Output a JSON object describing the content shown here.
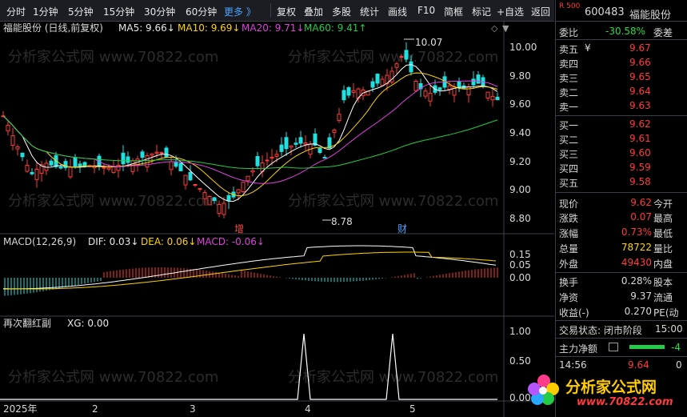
{
  "toolbar": {
    "periods": [
      "分时",
      "1分钟",
      "5分钟",
      "15分钟",
      "30分钟",
      "60分钟"
    ],
    "more": "更多 》",
    "tools": [
      "复权",
      "叠加",
      "多股",
      "统计",
      "画线",
      "F10",
      "简框",
      "标记",
      "+自选",
      "返回"
    ]
  },
  "main_chart": {
    "title": "福能股份 (日线,前复权)",
    "ma5": "MA5: 9.66↓",
    "ma10": "MA10: 9.69↓",
    "ma20": "MA20: 9.71↓",
    "ma60": "MA60: 9.41↑",
    "high_label": "10.07",
    "low_label": "8.78",
    "marker_zeng": "增",
    "marker_cai": "财",
    "watermark": "分析家公式网 www.70822.com",
    "price_ticks": [
      "10.00",
      "9.80",
      "9.60",
      "9.40",
      "9.20",
      "9.00",
      "8.80"
    ]
  },
  "macd_panel": {
    "title": "MACD(12,26,9)",
    "dif": "DIF: 0.03↓",
    "dea": "DEA: 0.06↓",
    "macd": "MACD: -0.06↓",
    "ticks": [
      "0.15",
      "0.05",
      "0.00"
    ]
  },
  "signal_panel": {
    "title": "再次翻红副",
    "xg": "XG: 0.00",
    "ticks": [
      "1.00",
      "0.50",
      "0.00"
    ]
  },
  "date_axis": [
    "2025年",
    "2",
    "3",
    "4",
    "5"
  ],
  "quote": {
    "code_badge": "R 500",
    "code": "600483",
    "name": "福能股份",
    "weibi_label": "委比",
    "weibi_value": "-30.58%",
    "weicha_label": "委差",
    "asks": [
      {
        "label": "卖五",
        "price": "9.67",
        "mark": "¥"
      },
      {
        "label": "卖四",
        "price": "9.66",
        "mark": ""
      },
      {
        "label": "卖三",
        "price": "9.65",
        "mark": ""
      },
      {
        "label": "卖二",
        "price": "9.64",
        "mark": ""
      },
      {
        "label": "卖一",
        "price": "9.63",
        "mark": ""
      }
    ],
    "bids": [
      {
        "label": "买一",
        "price": "9.62"
      },
      {
        "label": "买二",
        "price": "9.61"
      },
      {
        "label": "买三",
        "price": "9.60"
      },
      {
        "label": "买四",
        "price": "9.59"
      },
      {
        "label": "买五",
        "price": "9.58"
      }
    ],
    "stats": [
      {
        "l": "现价",
        "v": "9.62",
        "r": "今开",
        "c": "red"
      },
      {
        "l": "涨跌",
        "v": "0.07",
        "r": "最高",
        "c": "red"
      },
      {
        "l": "涨幅",
        "v": "0.73%",
        "r": "最低",
        "c": "red"
      },
      {
        "l": "总量",
        "v": "78722",
        "r": "量比",
        "c": "yel"
      },
      {
        "l": "外盘",
        "v": "49430",
        "r": "内盘",
        "c": "red"
      },
      {
        "l": "换手",
        "v": "0.28%",
        "r": "股本",
        "c": ""
      },
      {
        "l": "净资",
        "v": "9.37",
        "r": "流通",
        "c": ""
      },
      {
        "l": "收益(-)",
        "v": "0.270",
        "r": "PE(动",
        "c": ""
      }
    ],
    "status_label": "交易状态: 闭市阶段",
    "status_time": "15:00",
    "flow_label": "主力净额",
    "flow_value": "-4",
    "tick_time": "14:56",
    "tick_price": "9.64",
    "tick_vol": "0",
    "logo_text": "分析家公式网",
    "logo_url": "www.70822.com"
  }
}
